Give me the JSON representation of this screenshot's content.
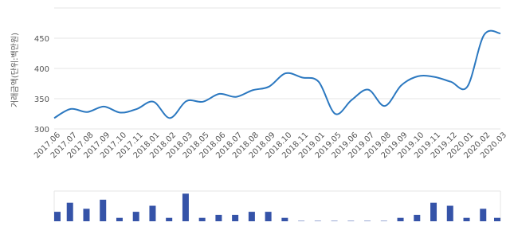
{
  "chart_data": [
    {
      "type": "line",
      "y_label": "거래금액(단위:백만원)",
      "color": "#2b78c0",
      "categories": [
        "2017.06",
        "2017.07",
        "2017.08",
        "2017.09",
        "2017.10",
        "2017.11",
        "2018.01",
        "2018.02",
        "2018.03",
        "2018.05",
        "2018.06",
        "2018.07",
        "2018.08",
        "2018.09",
        "2018.10",
        "2018.11",
        "2019.01",
        "2019.05",
        "2019.06",
        "2019.07",
        "2019.08",
        "2019.09",
        "2019.10",
        "2019.11",
        "2019.12",
        "2020.01",
        "2020.02",
        "2020.03"
      ],
      "values": [
        318,
        333,
        328,
        337,
        327,
        333,
        345,
        318,
        346,
        345,
        358,
        353,
        364,
        370,
        392,
        385,
        378,
        325,
        348,
        365,
        338,
        372,
        387,
        386,
        378,
        370,
        455,
        458
      ],
      "ylim": [
        300,
        500
      ],
      "yticks": [
        300,
        350,
        400,
        450
      ],
      "grid": true
    },
    {
      "type": "bar",
      "color": "#3553a8",
      "values": [
        3,
        6,
        4,
        7,
        1,
        3,
        5,
        1,
        9,
        1,
        2,
        2,
        3,
        3,
        1,
        0,
        0,
        0,
        0,
        0,
        0,
        1,
        2,
        6,
        5,
        1,
        4,
        1
      ],
      "ylim": [
        0,
        10
      ],
      "grid": true
    }
  ]
}
